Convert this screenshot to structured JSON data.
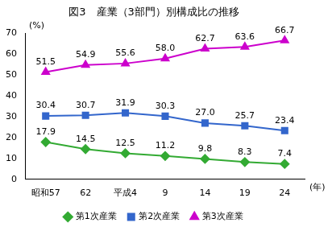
{
  "chart_data": {
    "type": "line",
    "title": "図3　産業（3部門）別構成比の推移",
    "y_label": "(%)",
    "x_label": "(年)",
    "categories": [
      "昭和57",
      "62",
      "平成4",
      "9",
      "14",
      "19",
      "24"
    ],
    "series": [
      {
        "name": "第1次産業",
        "color": "#33aa33",
        "marker": "diamond",
        "values": [
          17.9,
          14.5,
          12.5,
          11.2,
          9.8,
          8.3,
          7.4
        ]
      },
      {
        "name": "第2次産業",
        "color": "#3366cc",
        "marker": "square",
        "values": [
          30.4,
          30.7,
          31.9,
          30.3,
          27.0,
          25.7,
          23.4
        ],
        "value_labels": [
          "30.4",
          "30.7",
          "31.9",
          "30.3",
          "27.0",
          "25.7",
          "23.4"
        ]
      },
      {
        "name": "第3次産業",
        "color": "#cc00cc",
        "marker": "triangle",
        "values": [
          51.5,
          54.9,
          55.6,
          58.0,
          62.7,
          63.6,
          66.7
        ],
        "value_labels": [
          "51.5",
          "54.9",
          "55.6",
          "58.0",
          "62.7",
          "63.6",
          "66.7"
        ]
      }
    ],
    "ylim": [
      0,
      70
    ],
    "yticks": [
      0,
      10,
      20,
      30,
      40,
      50,
      60,
      70
    ],
    "grid": false,
    "legend": "bottom",
    "data_labels": true
  }
}
